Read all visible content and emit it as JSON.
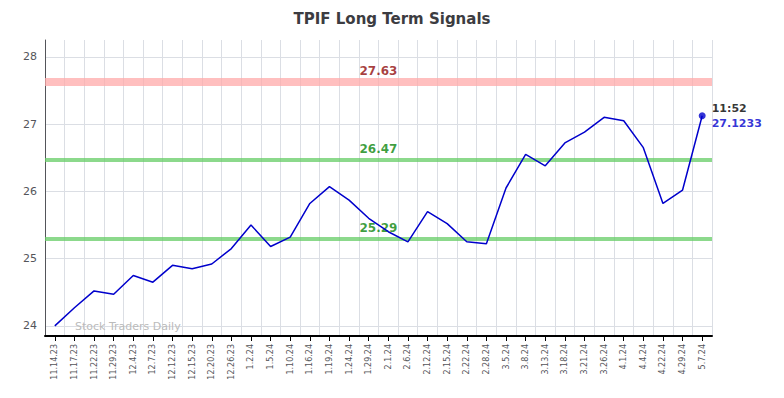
{
  "chart_data": {
    "type": "line",
    "title": "TPIF Long Term Signals",
    "categories": [
      "11.14.23",
      "11.17.23",
      "11.22.23",
      "11.29.23",
      "12.4.23",
      "12.7.23",
      "12.12.23",
      "12.15.23",
      "12.20.23",
      "12.26.23",
      "1.2.24",
      "1.5.24",
      "1.10.24",
      "1.16.24",
      "1.19.24",
      "1.24.24",
      "1.29.24",
      "2.1.24",
      "2.6.24",
      "2.12.24",
      "2.15.24",
      "2.22.24",
      "2.28.24",
      "3.5.24",
      "3.8.24",
      "3.13.24",
      "3.18.24",
      "3.21.24",
      "3.26.24",
      "4.1.24",
      "4.4.24",
      "4.22.24",
      "4.29.24",
      "5.7.24"
    ],
    "values": [
      24.0,
      24.27,
      24.52,
      24.47,
      24.75,
      24.65,
      24.9,
      24.85,
      24.92,
      25.15,
      25.5,
      25.18,
      25.32,
      25.82,
      26.07,
      25.87,
      25.6,
      25.4,
      25.25,
      25.7,
      25.52,
      25.25,
      25.22,
      26.05,
      26.55,
      26.38,
      26.72,
      26.88,
      27.1,
      27.05,
      26.65,
      25.82,
      26.02,
      27.1233
    ],
    "color": "#0000cc",
    "hlines": [
      {
        "value": 27.63,
        "color": "#ffaaaa",
        "label_color": "darkred"
      },
      {
        "value": 26.47,
        "color": "#66cc66",
        "label_color": "green"
      },
      {
        "value": 25.29,
        "color": "#66cc66",
        "label_color": "green"
      }
    ],
    "last_point": {
      "label": "11:52",
      "value": 27.1233
    },
    "watermark": {
      "text": "Stock Traders Daily",
      "color": "#bbbbbb"
    },
    "ylim": [
      23.85,
      28.25
    ],
    "yticks": [
      24,
      25,
      26,
      27,
      28
    ],
    "grid": true
  }
}
